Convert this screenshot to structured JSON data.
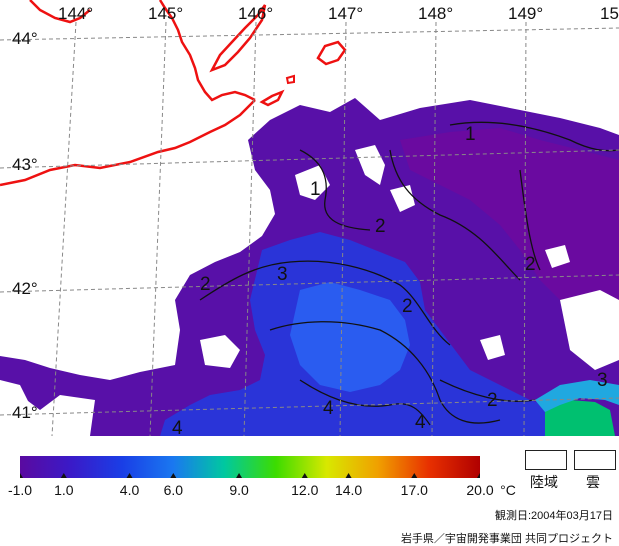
{
  "map": {
    "lon_labels": [
      "144°",
      "145°",
      "146°",
      "147°",
      "148°",
      "149°",
      "15"
    ],
    "lat_labels": [
      "44°",
      "43°",
      "42°",
      "41°"
    ],
    "contour_labels": [
      "1",
      "1",
      "2",
      "2",
      "2",
      "2",
      "3",
      "4",
      "4",
      "2",
      "3",
      "4"
    ]
  },
  "colorbar": {
    "ticks": [
      "-1.0",
      "1.0",
      "4.0",
      "6.0",
      "9.0",
      "12.0",
      "14.0",
      "17.0",
      "20.0"
    ],
    "unit": "°C",
    "colors": [
      "#5a0aa0",
      "#3a1ac8",
      "#1a3ee6",
      "#1a78f0",
      "#00c8a0",
      "#3cdc00",
      "#d8e800",
      "#f0a000",
      "#e83000",
      "#b00000"
    ]
  },
  "legend": {
    "land": "陸域",
    "cloud": "雲"
  },
  "footer": {
    "date": "観測日:2004年03月17日",
    "credit": "岩手県／宇宙開発事業団 共同プロジェクト"
  }
}
